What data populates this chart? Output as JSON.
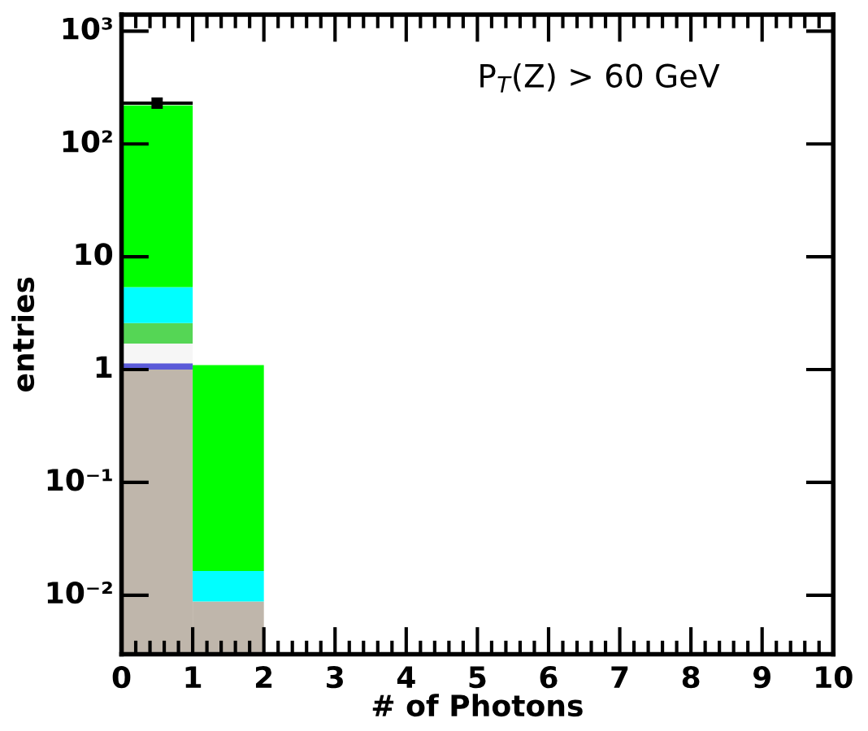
{
  "chart_data": {
    "type": "bar",
    "xlabel": "# of Photons",
    "ylabel": "entries",
    "x": [
      0.5,
      1.5
    ],
    "stacked": true,
    "log": "y",
    "series": [
      {
        "color": "#bfb6ab",
        "values": [
          1.0,
          0.0088
        ]
      },
      {
        "color": "#5a5ad8",
        "values": [
          0.14,
          null
        ]
      },
      {
        "color": "#f6f6f6",
        "values": [
          0.56,
          null
        ]
      },
      {
        "color": "#55d655",
        "values": [
          0.89,
          null
        ]
      },
      {
        "color": "#00ffff",
        "values": [
          2.8,
          0.0076
        ]
      },
      {
        "color": "#00ff00",
        "values": [
          214,
          1.08
        ]
      },
      {
        "type": "scatter",
        "color": "#000000",
        "marker": "square",
        "x": [
          0.5
        ],
        "values": [
          230
        ],
        "xerrors": [
          0.5
        ]
      }
    ],
    "xlim": [
      0,
      10
    ],
    "xticks": [
      0,
      1,
      2,
      3,
      4,
      5,
      6,
      7,
      8,
      9,
      10
    ],
    "ylim": [
      0.003,
      1400
    ],
    "yticks": [
      {
        "value": 0.01,
        "label": "10⁻²"
      },
      {
        "value": 0.1,
        "label": "10⁻¹"
      },
      1,
      10,
      {
        "value": 100,
        "label": "10²"
      },
      {
        "value": 1000,
        "label": "10³"
      }
    ],
    "annotations": [
      {
        "text": "P$_{T}$(Z) > 60 GeV"
      }
    ],
    "grid": false
  }
}
